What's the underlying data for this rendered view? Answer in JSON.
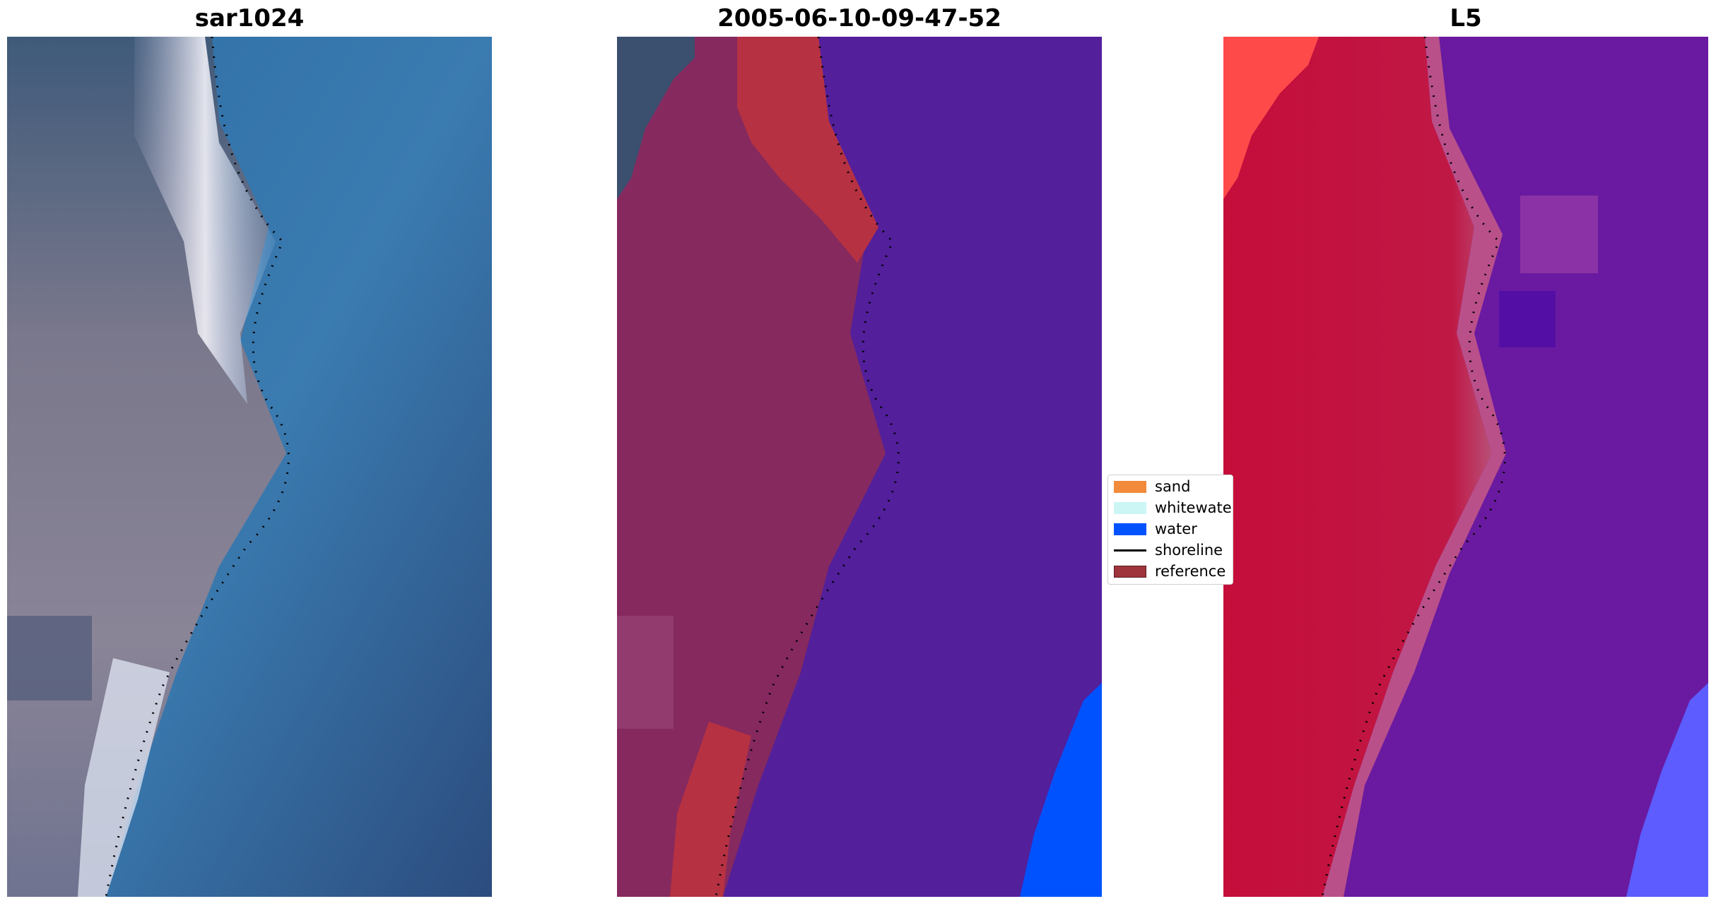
{
  "figure": {
    "panels": [
      {
        "title": "sar1024"
      },
      {
        "title": "2005-06-10-09-47-52"
      },
      {
        "title": "L5"
      }
    ],
    "legend": {
      "items": [
        {
          "label": "sand",
          "kind": "patch",
          "color": "#f28a3c"
        },
        {
          "label": "whitewater",
          "kind": "patch",
          "color": "#ccf6f6"
        },
        {
          "label": "water",
          "kind": "patch",
          "color": "#0052ff"
        },
        {
          "label": "shoreline",
          "kind": "line",
          "color": "#000000"
        },
        {
          "label": "reference",
          "kind": "patch",
          "color": "#a0343c"
        }
      ]
    },
    "colors": {
      "satellite_water": "#2f6ea6",
      "satellite_land": "#7e7c92",
      "class_water": "#531f9b",
      "class_land": "#85295f",
      "reference_buffer": "#b63142",
      "water_class_patch": "#0052ff",
      "index_land": "#c80d3a",
      "index_water": "#6a1aa0",
      "shoreline": "#000000"
    }
  }
}
